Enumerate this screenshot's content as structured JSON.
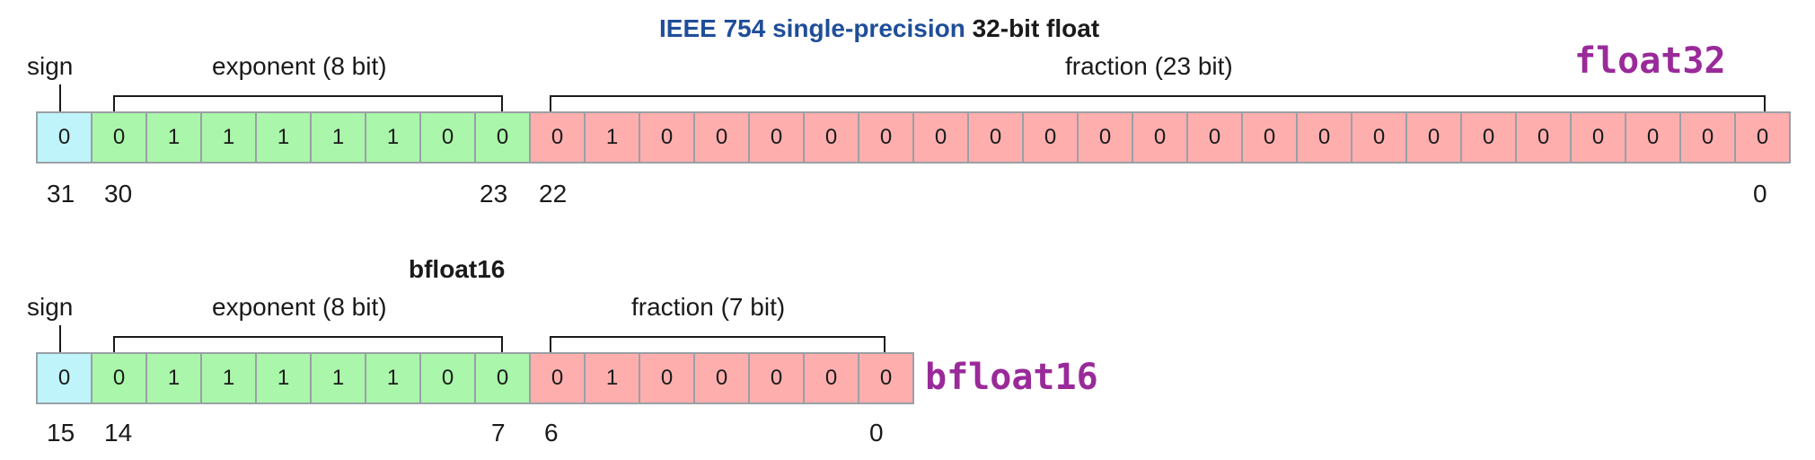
{
  "float32": {
    "title_highlight": "IEEE 754 single-precision",
    "title_rest": "32-bit float",
    "tag": "float32",
    "labels": {
      "sign": "sign",
      "exponent": "exponent (8 bit)",
      "fraction": "fraction (23 bit)"
    },
    "bits": {
      "sign": [
        "0"
      ],
      "exponent": [
        "0",
        "1",
        "1",
        "1",
        "1",
        "1",
        "0",
        "0"
      ],
      "fraction": [
        "0",
        "1",
        "0",
        "0",
        "0",
        "0",
        "0",
        "0",
        "0",
        "0",
        "0",
        "0",
        "0",
        "0",
        "0",
        "0",
        "0",
        "0",
        "0",
        "0",
        "0",
        "0",
        "0"
      ]
    },
    "bit_numbers": {
      "sign": "31",
      "exp_start": "30",
      "exp_end": "23",
      "frac_start": "22",
      "frac_end": "0"
    }
  },
  "bfloat16": {
    "title": "bfloat16",
    "tag": "bfloat16",
    "labels": {
      "sign": "sign",
      "exponent": "exponent (8 bit)",
      "fraction": "fraction (7 bit)"
    },
    "bits": {
      "sign": [
        "0"
      ],
      "exponent": [
        "0",
        "1",
        "1",
        "1",
        "1",
        "1",
        "0",
        "0"
      ],
      "fraction": [
        "0",
        "1",
        "0",
        "0",
        "0",
        "0",
        "0"
      ]
    },
    "bit_numbers": {
      "sign": "15",
      "exp_start": "14",
      "exp_end": "7",
      "frac_start": "6",
      "frac_end": "0"
    }
  },
  "colors": {
    "sign": "#bff4fa",
    "exponent": "#aaf6aa",
    "fraction": "#ffaeae",
    "tag": "#9a2a9a",
    "title_highlight": "#1f4e99"
  }
}
